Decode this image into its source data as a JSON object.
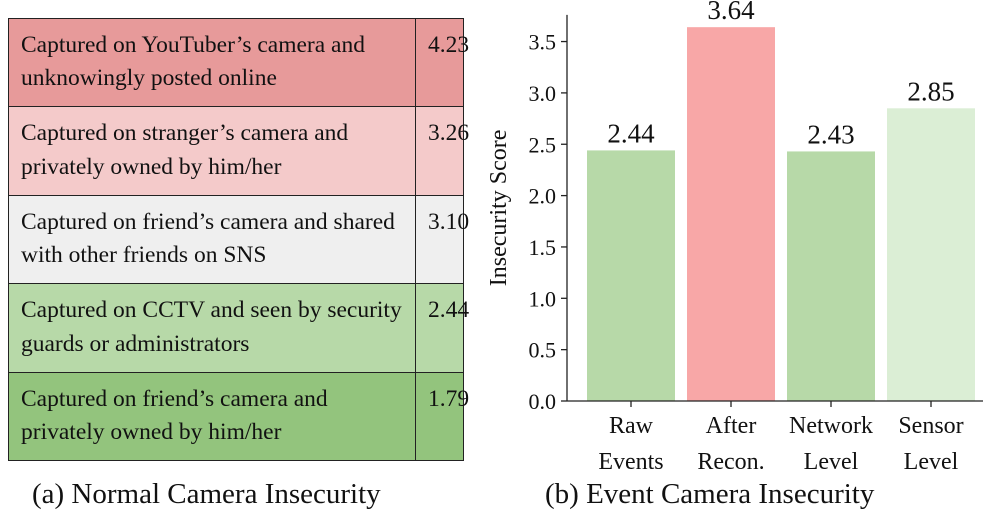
{
  "table": {
    "rows": [
      {
        "description": "Captured on YouTuber’s camera and unknowingly posted online",
        "score": "4.23",
        "color": "#e79a9a"
      },
      {
        "description": "Captured on stranger’s camera and privately owned by him/her",
        "score": "3.26",
        "color": "#f4caca"
      },
      {
        "description": "Captured on friend’s camera and shared with other friends on SNS",
        "score": "3.10",
        "color": "#efefef"
      },
      {
        "description": "Captured on CCTV and seen by security guards or administrators",
        "score": "2.44",
        "color": "#b7d9a8"
      },
      {
        "description": "Captured on friend’s camera and privately owned by him/her",
        "score": "1.79",
        "color": "#93c47d"
      }
    ],
    "caption": "(a) Normal Camera Insecurity"
  },
  "chart_data": {
    "type": "bar",
    "title": "(b) Event Camera Insecurity",
    "ylabel": "Insecurity Score",
    "xlabel": "",
    "categories": [
      [
        "Raw",
        "Events"
      ],
      [
        "After",
        "Recon."
      ],
      [
        "Network",
        "Level"
      ],
      [
        "Sensor",
        "Level"
      ]
    ],
    "values": [
      2.44,
      3.64,
      2.43,
      2.85
    ],
    "value_labels": [
      "2.44",
      "3.64",
      "2.43",
      "2.85"
    ],
    "colors": [
      "#b7d9a8",
      "#f8a7a7",
      "#b7d9a8",
      "#dbeed5"
    ],
    "ylim": [
      0,
      3.76
    ],
    "yticks": [
      "0.0",
      "0.5",
      "1.0",
      "1.5",
      "2.0",
      "2.5",
      "3.0",
      "3.5"
    ],
    "grid": false
  }
}
